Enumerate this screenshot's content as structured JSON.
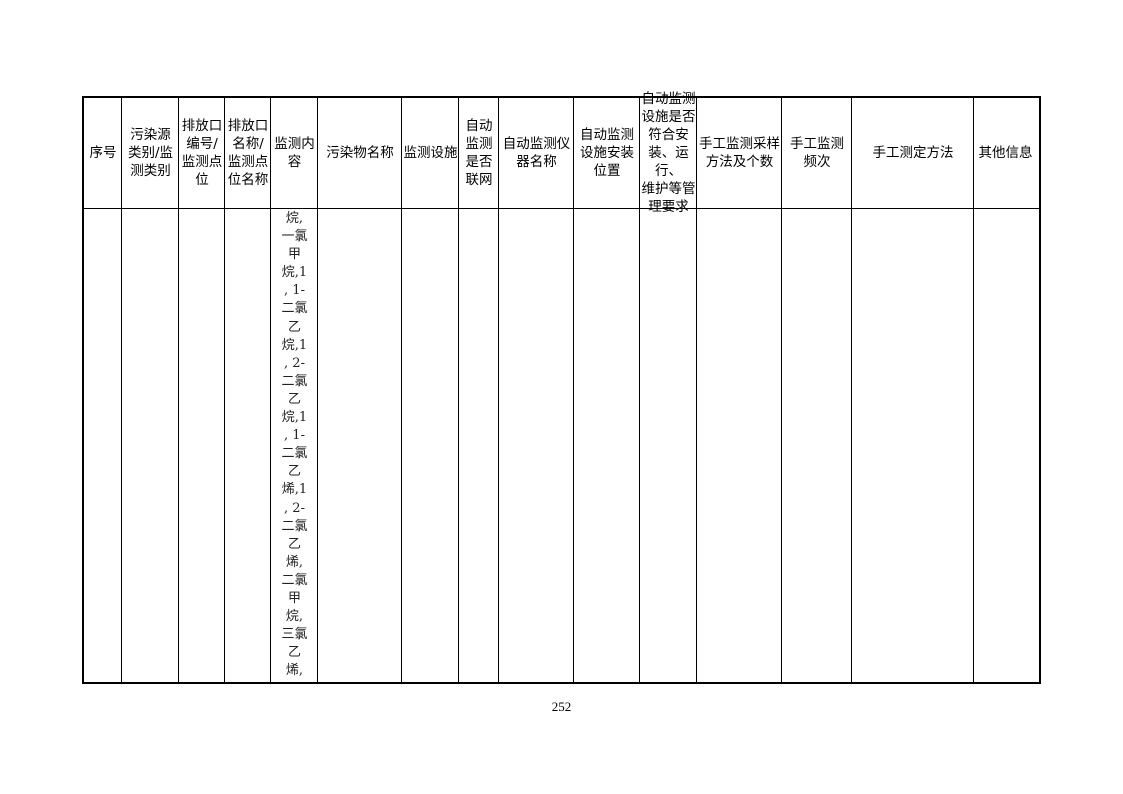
{
  "table": {
    "headers": [
      [
        "序号"
      ],
      [
        "污染源",
        "类别/监",
        "测类别"
      ],
      [
        "排放口",
        "编号/",
        "监测点",
        "位"
      ],
      [
        "排放口",
        "名称/",
        "监测点",
        "位名称"
      ],
      [
        "监测内",
        "容"
      ],
      [
        "污染物名称"
      ],
      [
        "监测设施"
      ],
      [
        "自动",
        "监测",
        "是否",
        "联网"
      ],
      [
        "自动监测仪",
        "器名称"
      ],
      [
        "自动监测",
        "设施安装",
        "位置"
      ],
      [
        "自动监测",
        "设施是否",
        "符合安",
        "装、运行、",
        "维护等管",
        "理要求"
      ],
      [
        "手工监测采样",
        "方法及个数"
      ],
      [
        "手工监测",
        "频次"
      ],
      [
        "手工测定方法"
      ],
      [
        "其他信息"
      ]
    ],
    "monitoring_content_lines": [
      "烷,",
      "一氯",
      "甲",
      "烷,1",
      ", 1-",
      "二氯",
      "乙",
      "烷,1",
      ", 2-",
      "二氯",
      "乙",
      "烷,1",
      ", 1-",
      "二氯",
      "乙",
      "烯,1",
      ", 2-",
      "二氯",
      "乙",
      "烯,",
      "二氯",
      "甲",
      "烷,",
      "三氯",
      "乙",
      "烯,"
    ]
  },
  "page_number": "252"
}
